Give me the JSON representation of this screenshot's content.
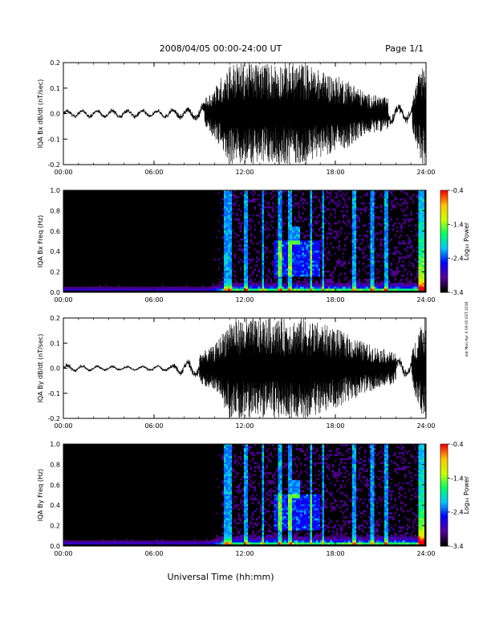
{
  "header": {
    "title": "2008/04/05  00:00-24:00 UT",
    "page": "Page 1/1"
  },
  "footer": {
    "xlabel": "Universal Time (hh:mm)",
    "side_note": "not Mon Apr 4 09:00 EST 2016"
  },
  "colors": {
    "background": "#ffffff",
    "spectrogram_background": "#000000",
    "trace": "#000000",
    "colorbar": [
      "#000000",
      "#5a00a0",
      "#0000ff",
      "#00c8ff",
      "#00ff64",
      "#c8ff00",
      "#ffc800",
      "#ff0000"
    ]
  },
  "chart_data": [
    {
      "type": "line",
      "name": "bx-dbdt",
      "ylabel": "IQA Bx dB/dt (nT/sec)",
      "ylim": [
        -0.2,
        0.2
      ],
      "yticks": [
        "-0.2",
        "-0.1",
        "0.0",
        "0.1",
        "0.2"
      ],
      "xlim": [
        0,
        24
      ],
      "xticks": [
        "00:00",
        "06:00",
        "12:00",
        "18:00",
        "24:00"
      ],
      "envelope": {
        "hours": [
          0,
          2,
          4,
          6,
          8,
          9,
          9.5,
          10,
          10.5,
          11,
          12,
          13,
          14,
          15,
          16,
          17,
          18,
          19,
          20,
          21,
          22,
          23,
          23.7,
          24
        ],
        "amplitude": [
          0.02,
          0.02,
          0.025,
          0.02,
          0.03,
          0.04,
          0.07,
          0.1,
          0.15,
          0.2,
          0.2,
          0.2,
          0.2,
          0.2,
          0.2,
          0.17,
          0.15,
          0.13,
          0.08,
          0.07,
          0.05,
          0.04,
          0.2,
          0.2
        ]
      }
    },
    {
      "type": "heatmap",
      "name": "bx-spectrogram",
      "ylabel": "IQA Bx Freq (Hz)",
      "ylim": [
        0.0,
        1.0
      ],
      "yticks": [
        "0.0",
        "0.2",
        "0.4",
        "0.6",
        "0.8",
        "1.0"
      ],
      "xlim": [
        0,
        24
      ],
      "xticks": [
        "00:00",
        "06:00",
        "12:00",
        "18:00",
        "24:00"
      ],
      "colorbar": {
        "label": "Log₁₀ Power",
        "range": [
          -3.4,
          -0.4
        ],
        "ticks": [
          "-0.4",
          "-1.4",
          "-2.4",
          "-3.4"
        ]
      },
      "features": {
        "activity_onset_hours": 10.5,
        "peak_band_hz": [
          0.25,
          0.45
        ],
        "peak_hours": [
          14,
          17
        ]
      }
    },
    {
      "type": "line",
      "name": "by-dbdt",
      "ylabel": "IQA By dB/dt (nT/sec)",
      "ylim": [
        -0.2,
        0.2
      ],
      "yticks": [
        "-0.2",
        "-0.1",
        "0.0",
        "0.1",
        "0.2"
      ],
      "xlim": [
        0,
        24
      ],
      "xticks": [
        "00:00",
        "06:00",
        "12:00",
        "18:00",
        "24:00"
      ],
      "envelope": {
        "hours": [
          0,
          2,
          4,
          6,
          7,
          8,
          9,
          10,
          10.5,
          11,
          12,
          13,
          14,
          15,
          16,
          17,
          18,
          19,
          20,
          21,
          22,
          23,
          23.7,
          24
        ],
        "amplitude": [
          0.02,
          0.015,
          0.012,
          0.015,
          0.02,
          0.04,
          0.06,
          0.09,
          0.14,
          0.2,
          0.2,
          0.2,
          0.2,
          0.2,
          0.2,
          0.18,
          0.16,
          0.13,
          0.1,
          0.08,
          0.06,
          0.05,
          0.2,
          0.2
        ]
      }
    },
    {
      "type": "heatmap",
      "name": "by-spectrogram",
      "ylabel": "IQA By Freq (Hz)",
      "ylim": [
        0.0,
        1.0
      ],
      "yticks": [
        "0.0",
        "0.2",
        "0.4",
        "0.6",
        "0.8",
        "1.0"
      ],
      "xlim": [
        0,
        24
      ],
      "xticks": [
        "00:00",
        "06:00",
        "12:00",
        "18:00",
        "24:00"
      ],
      "colorbar": {
        "label": "Log₁₀ Power",
        "range": [
          -3.4,
          -0.4
        ],
        "ticks": [
          "-0.4",
          "-1.4",
          "-2.4",
          "-3.4"
        ]
      },
      "features": {
        "activity_onset_hours": 10.5,
        "peak_band_hz": [
          0.25,
          0.45
        ],
        "peak_hours": [
          14,
          17
        ]
      }
    }
  ]
}
